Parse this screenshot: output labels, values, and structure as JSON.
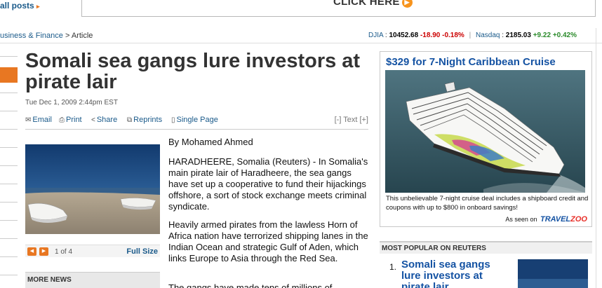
{
  "header": {
    "all_posts": "all posts",
    "ad_cta": "CLICK HERE"
  },
  "breadcrumb": {
    "section": "usiness & Finance",
    "separator": ">",
    "current": "Article"
  },
  "ticker": {
    "djia_label": "DJIA",
    "djia_value": "10452.68",
    "djia_change": "-18.90",
    "djia_pct": "-0.18%",
    "nasdaq_label": "Nasdaq",
    "nasdaq_value": "2185.03",
    "nasdaq_change": "+9.22",
    "nasdaq_pct": "+0.42%"
  },
  "article": {
    "headline": "Somali sea gangs lure investors at pirate lair",
    "dateline": "Tue Dec 1, 2009 2:44pm EST",
    "tools": {
      "email": "Email",
      "print": "Print",
      "share": "Share",
      "reprints": "Reprints",
      "single_page": "Single Page",
      "text_size": "[-] Text [+]"
    },
    "byline": "By Mohamed Ahmed",
    "paragraphs": [
      "HARADHEERE, Somalia (Reuters) - In Somalia's main pirate lair of Haradheere, the sea gangs have set up a cooperative to fund their hijackings offshore, a sort of stock exchange meets criminal syndicate.",
      "Heavily armed pirates from the lawless Horn of Africa nation have terrorized shipping lanes in the Indian Ocean and strategic Gulf of Aden, which links Europe to Asia through the Red Sea.",
      "The gangs have made tens of millions of"
    ]
  },
  "gallery": {
    "counter": "1 of 4",
    "full_size": "Full Size"
  },
  "more_news": "MORE NEWS",
  "ad": {
    "title": "$329 for 7-Night Caribbean Cruise",
    "copy": "This unbelievable 7-night cruise deal includes a shipboard credit and coupons with up to $800 in onboard savings!",
    "seen_on": "As seen on",
    "brand_main": "TRAVEL",
    "brand_accent": "ZOO"
  },
  "most_popular": {
    "heading": "MOST POPULAR ON REUTERS",
    "items": [
      {
        "number": "1.",
        "title": "Somali sea gangs lure investors at pirate lair"
      }
    ]
  }
}
